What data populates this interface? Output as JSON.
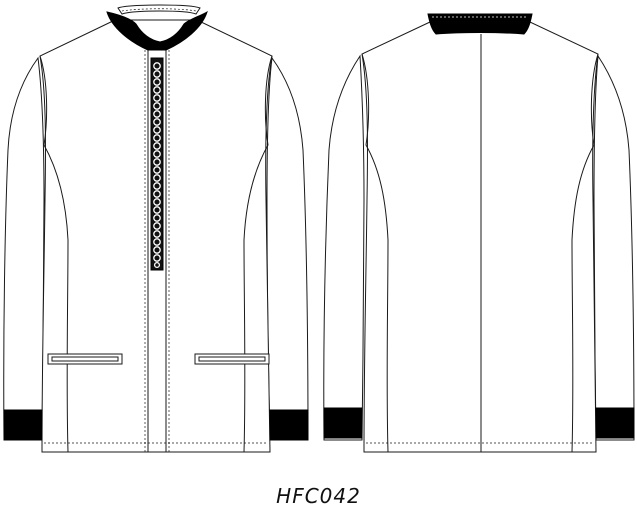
{
  "sketch": {
    "code": "HFC042",
    "views": [
      "front",
      "back"
    ]
  },
  "colors": {
    "line": "#1a1a1a",
    "fill": "#ffffff",
    "trim": "#000000"
  }
}
